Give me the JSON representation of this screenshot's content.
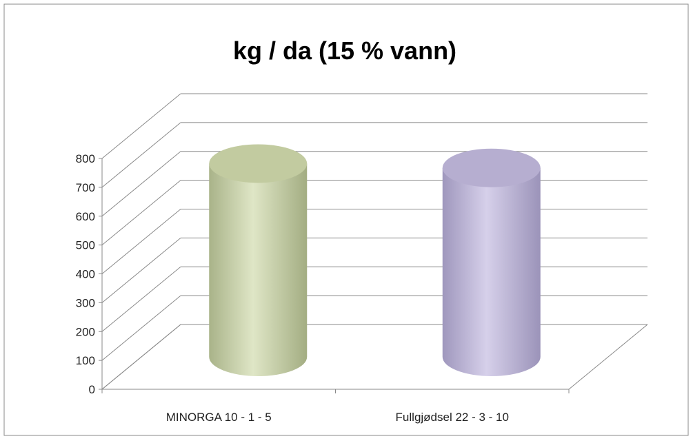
{
  "chart_data": {
    "type": "bar3d",
    "title": "kg / da (15 % vann)",
    "categories": [
      "MINORGA 10 - 1 -  5",
      "Fullgjødsel 22 - 3 - 10"
    ],
    "values": [
      670,
      655
    ],
    "colors": [
      "#c2cba0",
      "#b6aed0"
    ],
    "ylim": [
      0,
      800
    ],
    "yticks": [
      0,
      100,
      200,
      300,
      400,
      500,
      600,
      700,
      800
    ],
    "grid": true
  }
}
